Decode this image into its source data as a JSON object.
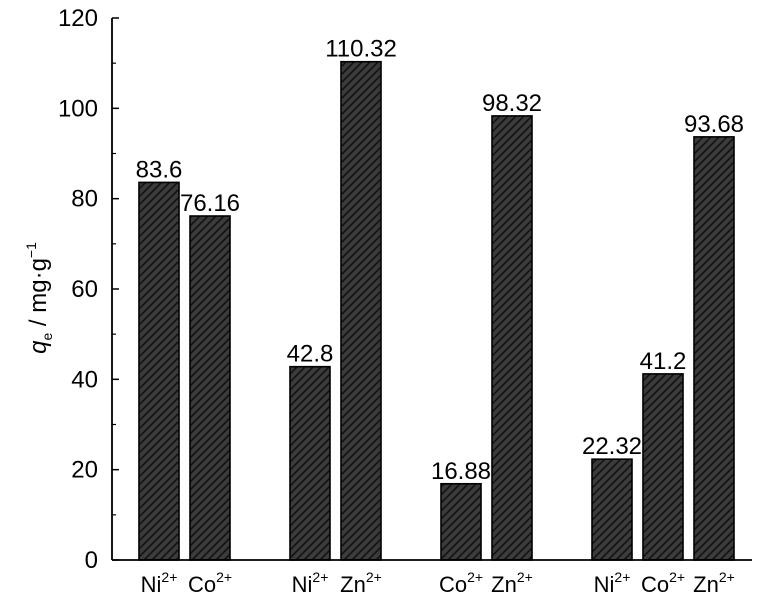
{
  "chart_data": {
    "type": "bar",
    "ylabel": {
      "main": "q",
      "sub": "e",
      "rest": " / mg·g",
      "sup": "−1"
    },
    "ylim": [
      0,
      120
    ],
    "yticks": [
      0,
      20,
      40,
      60,
      80,
      100,
      120
    ],
    "bar_color": "#3b3b3b",
    "groups": [
      {
        "bars": [
          {
            "ion": "Ni",
            "charge": "2+",
            "value": 83.6,
            "label": "83.6"
          },
          {
            "ion": "Co",
            "charge": "2+",
            "value": 76.16,
            "label": "76.16"
          }
        ]
      },
      {
        "bars": [
          {
            "ion": "Ni",
            "charge": "2+",
            "value": 42.8,
            "label": "42.8"
          },
          {
            "ion": "Zn",
            "charge": "2+",
            "value": 110.32,
            "label": "110.32"
          }
        ]
      },
      {
        "bars": [
          {
            "ion": "Co",
            "charge": "2+",
            "value": 16.88,
            "label": "16.88"
          },
          {
            "ion": "Zn",
            "charge": "2+",
            "value": 98.32,
            "label": "98.32"
          }
        ]
      },
      {
        "bars": [
          {
            "ion": "Ni",
            "charge": "2+",
            "value": 22.32,
            "label": "22.32"
          },
          {
            "ion": "Co",
            "charge": "2+",
            "value": 41.2,
            "label": "41.2"
          },
          {
            "ion": "Zn",
            "charge": "2+",
            "value": 93.68,
            "label": "93.68"
          }
        ]
      }
    ]
  }
}
